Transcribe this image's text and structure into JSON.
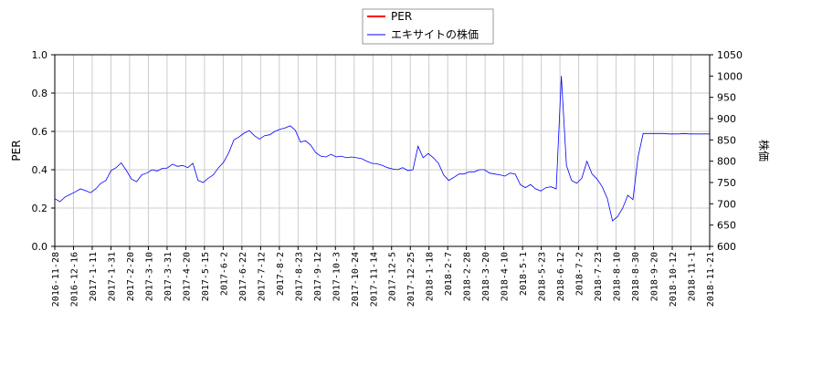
{
  "chart_data": {
    "type": "line",
    "title": "",
    "legend": {
      "placement": "top-center",
      "entries": [
        {
          "label": "PER",
          "color": "#ff0000"
        },
        {
          "label": "エキサイトの株価",
          "color": "#0000ff"
        }
      ]
    },
    "x_ticks": [
      "2016-11-28",
      "2016-12-16",
      "2017-1-11",
      "2017-1-31",
      "2017-2-20",
      "2017-3-10",
      "2017-3-31",
      "2017-4-20",
      "2017-5-15",
      "2017-6-2",
      "2017-6-22",
      "2017-7-12",
      "2017-8-2",
      "2017-8-23",
      "2017-9-12",
      "2017-10-3",
      "2017-10-24",
      "2017-11-14",
      "2017-12-5",
      "2017-12-25",
      "2018-1-18",
      "2018-2-7",
      "2018-2-28",
      "2018-3-20",
      "2018-4-10",
      "2018-5-1",
      "2018-5-23",
      "2018-6-12",
      "2018-7-2",
      "2018-7-23",
      "2018-8-10",
      "2018-8-30",
      "2018-9-20",
      "2018-10-12",
      "2018-11-1",
      "2018-11-21"
    ],
    "y_left": {
      "label": "PER",
      "range": [
        0.0,
        1.0
      ],
      "ticks": [
        "0.0",
        "0.2",
        "0.4",
        "0.6",
        "0.8",
        "1.0"
      ]
    },
    "y_right": {
      "label": "株価",
      "range": [
        600,
        1050
      ],
      "ticks": [
        "600",
        "650",
        "700",
        "750",
        "800",
        "850",
        "900",
        "950",
        "1000",
        "1050"
      ]
    },
    "grid": true,
    "series": [
      {
        "name": "PER",
        "axis": "left",
        "color": "#ff0000",
        "values": []
      },
      {
        "name": "エキサイトの株価",
        "axis": "right",
        "color": "#0000ff",
        "points": [
          [
            0,
            712
          ],
          [
            0.5,
            705
          ],
          [
            1,
            716
          ],
          [
            1.5,
            722
          ],
          [
            2,
            728
          ],
          [
            2.5,
            735
          ],
          [
            3,
            731
          ],
          [
            3.5,
            726
          ],
          [
            4,
            735
          ],
          [
            4.5,
            748
          ],
          [
            5,
            755
          ],
          [
            5.5,
            778
          ],
          [
            6,
            785
          ],
          [
            6.5,
            796
          ],
          [
            7,
            778
          ],
          [
            7.5,
            758
          ],
          [
            8,
            752
          ],
          [
            8.5,
            768
          ],
          [
            9,
            772
          ],
          [
            9.5,
            780
          ],
          [
            10,
            777
          ],
          [
            10.5,
            783
          ],
          [
            11,
            784
          ],
          [
            11.5,
            793
          ],
          [
            12,
            788
          ],
          [
            12.5,
            790
          ],
          [
            13,
            785
          ],
          [
            13.5,
            795
          ],
          [
            14,
            755
          ],
          [
            14.5,
            750
          ],
          [
            15,
            760
          ],
          [
            15.5,
            768
          ],
          [
            16,
            785
          ],
          [
            16.5,
            798
          ],
          [
            17,
            820
          ],
          [
            17.5,
            850
          ],
          [
            18,
            857
          ],
          [
            18.5,
            866
          ],
          [
            19,
            872
          ],
          [
            19.5,
            860
          ],
          [
            20,
            852
          ],
          [
            20.5,
            860
          ],
          [
            21,
            862
          ],
          [
            21.5,
            870
          ],
          [
            22,
            875
          ],
          [
            22.5,
            878
          ],
          [
            23,
            883
          ],
          [
            23.5,
            873
          ],
          [
            24,
            845
          ],
          [
            24.5,
            848
          ],
          [
            25,
            838
          ],
          [
            25.5,
            820
          ],
          [
            26,
            812
          ],
          [
            26.5,
            810
          ],
          [
            27,
            816
          ],
          [
            27.5,
            810
          ],
          [
            28,
            812
          ],
          [
            28.5,
            808
          ],
          [
            29,
            810
          ],
          [
            29.5,
            808
          ],
          [
            30,
            806
          ],
          [
            30.5,
            800
          ],
          [
            31,
            795
          ],
          [
            31.5,
            794
          ],
          [
            32,
            790
          ],
          [
            32.5,
            785
          ],
          [
            33,
            782
          ],
          [
            33.5,
            780
          ],
          [
            34,
            785
          ],
          [
            34.5,
            778
          ],
          [
            35,
            780
          ],
          [
            35.5,
            835
          ],
          [
            36,
            808
          ],
          [
            36.5,
            818
          ],
          [
            37,
            808
          ],
          [
            37.5,
            795
          ],
          [
            38,
            768
          ],
          [
            38.5,
            755
          ],
          [
            39,
            762
          ],
          [
            39.5,
            770
          ],
          [
            40,
            770
          ],
          [
            40.5,
            775
          ],
          [
            41,
            775
          ],
          [
            41.5,
            780
          ],
          [
            42,
            780
          ],
          [
            42.5,
            772
          ],
          [
            43,
            770
          ],
          [
            43.5,
            768
          ],
          [
            44,
            765
          ],
          [
            44.5,
            772
          ],
          [
            45,
            770
          ],
          [
            45.5,
            745
          ],
          [
            46,
            738
          ],
          [
            46.5,
            745
          ],
          [
            47,
            735
          ],
          [
            47.5,
            730
          ],
          [
            48,
            738
          ],
          [
            48.5,
            740
          ],
          [
            49,
            735
          ],
          [
            49.5,
            1000
          ],
          [
            50,
            790
          ],
          [
            50.5,
            755
          ],
          [
            51,
            748
          ],
          [
            51.5,
            760
          ],
          [
            52,
            800
          ],
          [
            52.5,
            770
          ],
          [
            53,
            758
          ],
          [
            53.5,
            740
          ],
          [
            54,
            712
          ],
          [
            54.5,
            660
          ],
          [
            55,
            670
          ],
          [
            55.5,
            690
          ],
          [
            56,
            720
          ],
          [
            56.5,
            710
          ],
          [
            57,
            810
          ],
          [
            57.5,
            865
          ],
          [
            58,
            865
          ],
          [
            58.5,
            865
          ],
          [
            59,
            865
          ],
          [
            59.5,
            865
          ],
          [
            60,
            864
          ],
          [
            60.5,
            864
          ],
          [
            61,
            864
          ],
          [
            61.5,
            865
          ],
          [
            62,
            864
          ],
          [
            62.5,
            864
          ],
          [
            63,
            864
          ],
          [
            63.5,
            864
          ],
          [
            64,
            864
          ]
        ]
      }
    ]
  }
}
